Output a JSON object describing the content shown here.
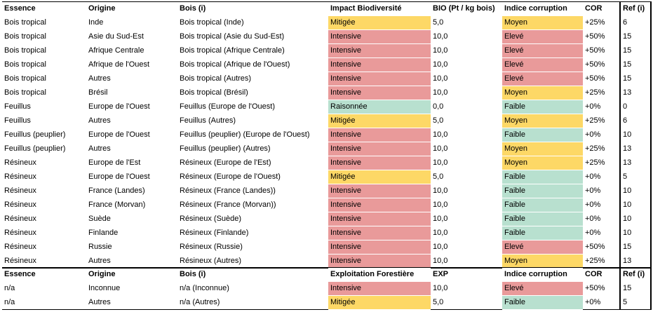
{
  "colors": {
    "intensive": "#e99a9a",
    "mitigee": "#fdd866",
    "raisonnee": "#b8e0cf",
    "eleve": "#e99a9a",
    "moyen": "#fdd866",
    "faible": "#b8e0cf"
  },
  "table1": {
    "headers": [
      "Essence",
      "Origine",
      "Bois (i)",
      "Impact Biodiversité",
      "BIO (Pt / kg bois)",
      "Indice corruption",
      "COR",
      "Ref (i)"
    ],
    "rows": [
      [
        "Bois tropical",
        "Inde",
        "Bois tropical (Inde)",
        "Mitigée",
        "5,0",
        "Moyen",
        "+25%",
        "6"
      ],
      [
        "Bois tropical",
        "Asie du Sud-Est",
        "Bois tropical (Asie du Sud-Est)",
        "Intensive",
        "10,0",
        "Elevé",
        "+50%",
        "15"
      ],
      [
        "Bois tropical",
        "Afrique Centrale",
        "Bois tropical (Afrique Centrale)",
        "Intensive",
        "10,0",
        "Elevé",
        "+50%",
        "15"
      ],
      [
        "Bois tropical",
        "Afrique de l'Ouest",
        "Bois tropical (Afrique de l'Ouest)",
        "Intensive",
        "10,0",
        "Elevé",
        "+50%",
        "15"
      ],
      [
        "Bois tropical",
        "Autres",
        "Bois tropical (Autres)",
        "Intensive",
        "10,0",
        "Elevé",
        "+50%",
        "15"
      ],
      [
        "Bois tropical",
        "Brésil",
        "Bois tropical (Brésil)",
        "Intensive",
        "10,0",
        "Moyen",
        "+25%",
        "13"
      ],
      [
        "Feuillus",
        "Europe de l'Ouest",
        "Feuillus (Europe de l'Ouest)",
        "Raisonnée",
        "0,0",
        "Faible",
        "+0%",
        "0"
      ],
      [
        "Feuillus",
        "Autres",
        "Feuillus (Autres)",
        "Mitigée",
        "5,0",
        "Moyen",
        "+25%",
        "6"
      ],
      [
        "Feuillus (peuplier)",
        "Europe de l'Ouest",
        "Feuillus (peuplier) (Europe de l'Ouest)",
        "Intensive",
        "10,0",
        "Faible",
        "+0%",
        "10"
      ],
      [
        "Feuillus (peuplier)",
        "Autres",
        "Feuillus (peuplier) (Autres)",
        "Intensive",
        "10,0",
        "Moyen",
        "+25%",
        "13"
      ],
      [
        "Résineux",
        "Europe de l'Est",
        "Résineux (Europe de l'Est)",
        "Intensive",
        "10,0",
        "Moyen",
        "+25%",
        "13"
      ],
      [
        "Résineux",
        "Europe de l'Ouest",
        "Résineux (Europe de l'Ouest)",
        "Mitigée",
        "5,0",
        "Faible",
        "+0%",
        "5"
      ],
      [
        "Résineux",
        "France (Landes)",
        "Résineux (France (Landes))",
        "Intensive",
        "10,0",
        "Faible",
        "+0%",
        "10"
      ],
      [
        "Résineux",
        "France (Morvan)",
        "Résineux (France (Morvan))",
        "Intensive",
        "10,0",
        "Faible",
        "+0%",
        "10"
      ],
      [
        "Résineux",
        "Suède",
        "Résineux (Suède)",
        "Intensive",
        "10,0",
        "Faible",
        "+0%",
        "10"
      ],
      [
        "Résineux",
        "Finlande",
        "Résineux (Finlande)",
        "Intensive",
        "10,0",
        "Faible",
        "+0%",
        "10"
      ],
      [
        "Résineux",
        "Russie",
        "Résineux (Russie)",
        "Intensive",
        "10,0",
        "Elevé",
        "+50%",
        "15"
      ],
      [
        "Résineux",
        "Autres",
        "Résineux (Autres)",
        "Intensive",
        "10,0",
        "Moyen",
        "+25%",
        "13"
      ]
    ]
  },
  "table2": {
    "headers": [
      "Essence",
      "Origine",
      "Bois (i)",
      "Exploitation Forestière",
      "EXP",
      "Indice corruption",
      "COR",
      "Ref (i)"
    ],
    "rows": [
      [
        "n/a",
        "Inconnue",
        "n/a (Inconnue)",
        "Intensive",
        "10,0",
        "Elevé",
        "+50%",
        "15"
      ],
      [
        "n/a",
        "Autres",
        "n/a (Autres)",
        "Mitigée",
        "5,0",
        "Faible",
        "+0%",
        "5"
      ]
    ]
  }
}
